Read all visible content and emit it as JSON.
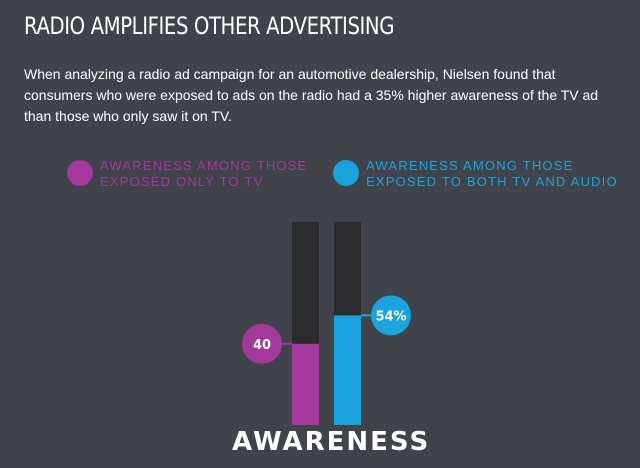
{
  "title": "RADIO AMPLIFIES OTHER ADVERTISING",
  "description": "When analyzing a radio ad campaign for an automotive dealership, Nielsen found that consumers who were exposed to ads on the radio had a 35% higher awareness of the TV ad than those who only saw it on TV.",
  "colors": {
    "background": "#40444a",
    "track": "#2b2b2d",
    "tv_only": "#a3399a",
    "tv_audio": "#1aa3dc"
  },
  "chart_data": {
    "type": "bar",
    "ylim": [
      0,
      100
    ],
    "xlabel": "AWARENESS",
    "legend_position": "top",
    "series": [
      {
        "name": "AWARENESS AMONG THOSE EXPOSED ONLY TO TV",
        "value": 40,
        "label": "40",
        "color": "#a3399a",
        "label_side": "left"
      },
      {
        "name": "AWARENESS AMONG THOSE EXPOSED TO BOTH TV AND AUDIO",
        "value": 54,
        "label": "54%",
        "color": "#1aa3dc",
        "label_side": "right"
      }
    ]
  }
}
